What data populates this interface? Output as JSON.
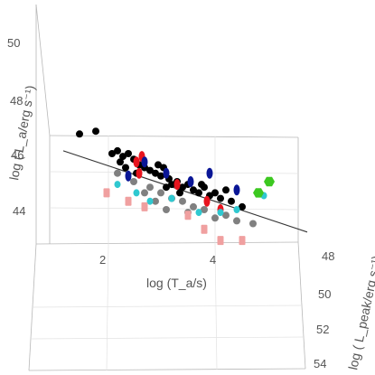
{
  "chart_data": {
    "type": "scatter3d",
    "title": "",
    "axes": {
      "x": {
        "label": "log (T_a/s)",
        "ticks": [
          "2",
          "4"
        ],
        "range": [
          1,
          5
        ]
      },
      "y": {
        "label": "log ( L_a/erg s⁻¹)",
        "ticks": [
          "44",
          "46",
          "48",
          "50"
        ],
        "range": [
          43,
          51
        ]
      },
      "z": {
        "label": "log ( L_peak/erg s⁻¹)",
        "ticks": [
          "48",
          "50",
          "52",
          "54"
        ],
        "range": [
          48,
          54
        ]
      }
    },
    "grid": true,
    "fit_plane": {
      "from_x": 1.4,
      "to_x": 5.0,
      "description": "best-fit plane edge"
    },
    "colors": {
      "black": "#000000",
      "gray": "#808080",
      "red": "#e8141e",
      "blue": "#0a1696",
      "cyan": "#30c8d0",
      "pink": "#f0a0a0",
      "green": "#3cc820"
    },
    "series": [
      {
        "color_key": "black",
        "points": [
          {
            "x": 1.5,
            "y": 46.7
          },
          {
            "x": 1.8,
            "y": 46.8
          },
          {
            "x": 2.1,
            "y": 46.0
          },
          {
            "x": 2.2,
            "y": 46.1
          },
          {
            "x": 2.3,
            "y": 45.9
          },
          {
            "x": 2.25,
            "y": 45.7
          },
          {
            "x": 2.4,
            "y": 46.0
          },
          {
            "x": 2.5,
            "y": 45.8
          },
          {
            "x": 2.6,
            "y": 45.6
          },
          {
            "x": 2.7,
            "y": 45.5
          },
          {
            "x": 2.8,
            "y": 45.4
          },
          {
            "x": 2.9,
            "y": 45.3
          },
          {
            "x": 3.0,
            "y": 45.2
          },
          {
            "x": 3.05,
            "y": 45.5
          },
          {
            "x": 3.15,
            "y": 45.1
          },
          {
            "x": 3.2,
            "y": 44.9
          },
          {
            "x": 3.3,
            "y": 45.0
          },
          {
            "x": 3.4,
            "y": 44.8
          },
          {
            "x": 3.5,
            "y": 44.9
          },
          {
            "x": 3.6,
            "y": 44.7
          },
          {
            "x": 3.7,
            "y": 44.6
          },
          {
            "x": 3.8,
            "y": 44.8
          },
          {
            "x": 3.9,
            "y": 44.5
          },
          {
            "x": 4.0,
            "y": 44.6
          },
          {
            "x": 4.1,
            "y": 44.4
          },
          {
            "x": 4.3,
            "y": 44.3
          },
          {
            "x": 4.5,
            "y": 44.1
          },
          {
            "x": 2.55,
            "y": 45.3
          },
          {
            "x": 3.35,
            "y": 44.6
          },
          {
            "x": 2.95,
            "y": 45.6
          },
          {
            "x": 3.75,
            "y": 44.9
          },
          {
            "x": 4.2,
            "y": 44.7
          },
          {
            "x": 2.35,
            "y": 45.5
          },
          {
            "x": 3.1,
            "y": 44.8
          }
        ]
      },
      {
        "color_key": "gray",
        "points": [
          {
            "x": 2.2,
            "y": 45.3
          },
          {
            "x": 2.5,
            "y": 45.0
          },
          {
            "x": 2.8,
            "y": 44.8
          },
          {
            "x": 2.9,
            "y": 44.3
          },
          {
            "x": 3.0,
            "y": 44.6
          },
          {
            "x": 3.2,
            "y": 44.4
          },
          {
            "x": 3.4,
            "y": 44.3
          },
          {
            "x": 3.5,
            "y": 43.9
          },
          {
            "x": 3.6,
            "y": 44.1
          },
          {
            "x": 3.8,
            "y": 44.0
          },
          {
            "x": 4.0,
            "y": 43.7
          },
          {
            "x": 4.2,
            "y": 43.8
          },
          {
            "x": 4.4,
            "y": 43.6
          },
          {
            "x": 4.7,
            "y": 43.5
          },
          {
            "x": 3.1,
            "y": 44.0
          },
          {
            "x": 2.7,
            "y": 44.6
          }
        ]
      },
      {
        "color_key": "red",
        "points": [
          {
            "x": 2.55,
            "y": 45.7
          },
          {
            "x": 2.65,
            "y": 45.9
          },
          {
            "x": 3.3,
            "y": 44.9
          },
          {
            "x": 3.85,
            "y": 44.3
          },
          {
            "x": 2.6,
            "y": 45.3
          },
          {
            "x": 4.1,
            "y": 44.0
          }
        ]
      },
      {
        "color_key": "blue",
        "points": [
          {
            "x": 2.4,
            "y": 45.2
          },
          {
            "x": 3.1,
            "y": 45.3
          },
          {
            "x": 3.9,
            "y": 45.3
          },
          {
            "x": 4.4,
            "y": 44.7
          },
          {
            "x": 3.55,
            "y": 45.0
          },
          {
            "x": 2.7,
            "y": 45.7
          }
        ]
      },
      {
        "color_key": "cyan",
        "points": [
          {
            "x": 2.2,
            "y": 44.9
          },
          {
            "x": 2.55,
            "y": 44.6
          },
          {
            "x": 3.2,
            "y": 44.4
          },
          {
            "x": 3.7,
            "y": 43.9
          },
          {
            "x": 4.1,
            "y": 43.9
          },
          {
            "x": 4.4,
            "y": 44.0
          },
          {
            "x": 4.9,
            "y": 44.5
          },
          {
            "x": 2.8,
            "y": 44.3
          }
        ]
      },
      {
        "color_key": "pink",
        "points": [
          {
            "x": 2.0,
            "y": 44.6
          },
          {
            "x": 2.4,
            "y": 44.3
          },
          {
            "x": 3.5,
            "y": 43.8
          },
          {
            "x": 3.8,
            "y": 43.3
          },
          {
            "x": 4.5,
            "y": 42.9
          },
          {
            "x": 4.1,
            "y": 42.9
          },
          {
            "x": 2.7,
            "y": 44.1
          }
        ]
      },
      {
        "color_key": "green",
        "points": [
          {
            "x": 5.0,
            "y": 45.0
          },
          {
            "x": 4.8,
            "y": 44.6
          }
        ]
      }
    ]
  }
}
